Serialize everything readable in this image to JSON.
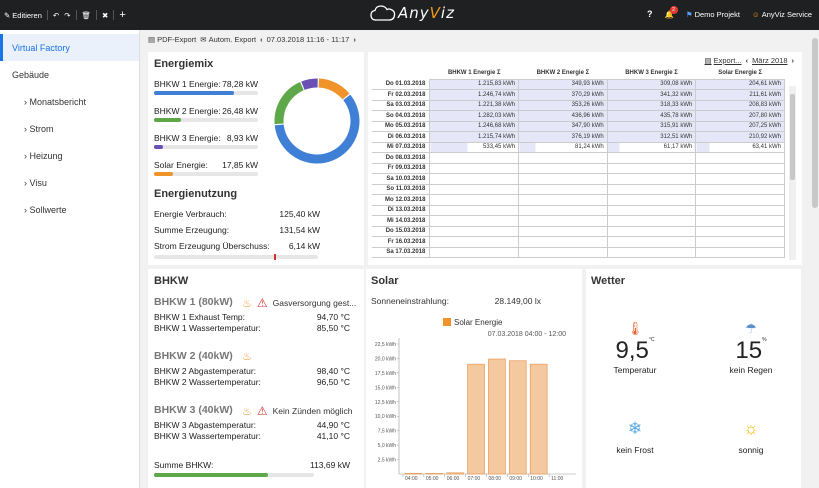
{
  "topbar": {
    "edit_label": "Editieren",
    "app_name_a": "Any",
    "app_name_v": "V",
    "app_name_iz": "iz",
    "notification_count": "2",
    "project_label": "Demo Projekt",
    "user_label": "AnyViz Service",
    "help_label": "?"
  },
  "sidebar": {
    "items": [
      {
        "label": "Virtual Factory"
      },
      {
        "label": "Gebäude"
      },
      {
        "label": "› Monatsbericht"
      },
      {
        "label": "› Strom"
      },
      {
        "label": "› Heizung"
      },
      {
        "label": "› Visu"
      },
      {
        "label": "› Sollwerte"
      }
    ]
  },
  "toolbar": {
    "pdf_export": "PDF-Export",
    "auto_export": "Autom. Export",
    "range": "07.03.2018 11:16 - 11:17"
  },
  "energiemix": {
    "title": "Energiemix",
    "rows": [
      {
        "label": "BHKW 1 Energie:",
        "value": "78,28 kW",
        "color": "#3f7fd6",
        "ratio": 0.77
      },
      {
        "label": "BHKW 2 Energie:",
        "value": "26,48 kW",
        "color": "#5ea84a",
        "ratio": 0.26
      },
      {
        "label": "BHKW 3 Energie:",
        "value": "8,93 kW",
        "color": "#6a4fb4",
        "ratio": 0.09
      },
      {
        "label": "Solar Energie:",
        "value": "17,85 kW",
        "color": "#f0932b",
        "ratio": 0.18
      }
    ],
    "donut": [
      {
        "value": 78.28,
        "color": "#3f7fd6"
      },
      {
        "value": 26.48,
        "color": "#5ea84a"
      },
      {
        "value": 8.93,
        "color": "#6a4fb4"
      },
      {
        "value": 17.85,
        "color": "#f0932b"
      }
    ],
    "nutzung_title": "Energienutzung",
    "verbrauch_label": "Energie Verbrauch:",
    "verbrauch_value": "125,40 kW",
    "erzeugung_label": "Summe Erzeugung:",
    "erzeugung_value": "131,54 kW",
    "ueberschuss_label": "Strom Erzeugung Überschuss:",
    "ueberschuss_value": "6,14 kW",
    "ueberschuss_ratio": 0.73
  },
  "table": {
    "export_label": "Export...",
    "month_label": "März 2018",
    "headers": [
      "BHKW 1 Energie Σ",
      "BHKW 2 Energie Σ",
      "BHKW 3 Energie Σ",
      "Solar Energie Σ"
    ],
    "rows": [
      {
        "date": "Do 01.03.2018",
        "vals": [
          "1.215,83 kWh",
          "349,93 kWh",
          "309,08 kWh",
          "204,61 kWh"
        ]
      },
      {
        "date": "Fr 02.03.2018",
        "vals": [
          "1.246,74 kWh",
          "370,29 kWh",
          "341,32 kWh",
          "211,61 kWh"
        ]
      },
      {
        "date": "Sa 03.03.2018",
        "vals": [
          "1.221,38 kWh",
          "353,26 kWh",
          "318,33 kWh",
          "208,83 kWh"
        ]
      },
      {
        "date": "So 04.03.2018",
        "vals": [
          "1.282,03 kWh",
          "436,96 kWh",
          "435,78 kWh",
          "207,80 kWh"
        ]
      },
      {
        "date": "Mo 05.03.2018",
        "vals": [
          "1.246,68 kWh",
          "347,90 kWh",
          "315,91 kWh",
          "207,25 kWh"
        ]
      },
      {
        "date": "Di 06.03.2018",
        "vals": [
          "1.215,74 kWh",
          "376,19 kWh",
          "312,51 kWh",
          "210,92 kWh"
        ]
      },
      {
        "date": "Mi 07.03.2018",
        "vals": [
          "533,45 kWh",
          "81,24 kWh",
          "61,17 kWh",
          "63,41 kWh"
        ]
      },
      {
        "date": "Do 08.03.2018",
        "vals": [
          "",
          "",
          "",
          ""
        ]
      },
      {
        "date": "Fr 09.03.2018",
        "vals": [
          "",
          "",
          "",
          ""
        ]
      },
      {
        "date": "Sa 10.03.2018",
        "vals": [
          "",
          "",
          "",
          ""
        ]
      },
      {
        "date": "So 11.03.2018",
        "vals": [
          "",
          "",
          "",
          ""
        ]
      },
      {
        "date": "Mo 12.03.2018",
        "vals": [
          "",
          "",
          "",
          ""
        ]
      },
      {
        "date": "Di 13.03.2018",
        "vals": [
          "",
          "",
          "",
          ""
        ]
      },
      {
        "date": "Mi 14.03.2018",
        "vals": [
          "",
          "",
          "",
          ""
        ]
      },
      {
        "date": "Do 15.03.2018",
        "vals": [
          "",
          "",
          "",
          ""
        ]
      },
      {
        "date": "Fr 16.03.2018",
        "vals": [
          "",
          "",
          "",
          ""
        ]
      },
      {
        "date": "Sa 17.03.2018",
        "vals": [
          "",
          "",
          "",
          ""
        ]
      }
    ]
  },
  "bhkw": {
    "title": "BHKW",
    "units": [
      {
        "name": "BHKW 1 (80kW)",
        "alert": "Gasversorgung gest...",
        "lines": [
          [
            "BHKW 1 Exhaust Temp:",
            "94,70 °C"
          ],
          [
            "BHKW 1 Wassertemperatur:",
            "85,50 °C"
          ]
        ]
      },
      {
        "name": "BHKW 2 (40kW)",
        "alert": "",
        "lines": [
          [
            "BHKW 2 Abgastemperatur:",
            "98,40 °C"
          ],
          [
            "BHKW 2 Wassertemperatur:",
            "96,50 °C"
          ]
        ]
      },
      {
        "name": "BHKW 3 (40kW)",
        "alert": "Kein Zünden möglich",
        "lines": [
          [
            "BHKW 3 Abgastemperatur:",
            "44,90 °C"
          ],
          [
            "BHKW 3 Wassertemperatur:",
            "41,10 °C"
          ]
        ]
      }
    ],
    "sum_label": "Summe BHKW:",
    "sum_value": "113,69 kW",
    "sum_ratio": 0.71
  },
  "solar": {
    "title": "Solar",
    "irradiance_label": "Sonneneinstrahlung:",
    "irradiance_value": "28.149,00 lx"
  },
  "weather": {
    "title": "Wetter",
    "temp_value": "9,5",
    "temp_unit": "°C",
    "temp_label": "Temperatur",
    "rain_value": "15",
    "rain_unit": "%",
    "rain_label": "kein Regen",
    "frost_label": "kein Frost",
    "sun_label": "sonnig"
  },
  "chart_data": {
    "type": "bar",
    "title": "07.03.2018 04:00 - 12:00",
    "legend": [
      "Solar Energie"
    ],
    "categories": [
      "04:00",
      "05:00",
      "06:00",
      "07:00",
      "08:00",
      "09:00",
      "10:00",
      "11:00"
    ],
    "values": [
      0.1,
      0.1,
      0.2,
      19.0,
      19.9,
      19.6,
      19.0,
      0
    ],
    "ylim": [
      0,
      22.5
    ],
    "yticks": [
      "2,5 kWh",
      "5,0 kWh",
      "7,5 kWh",
      "10,0 kWh",
      "12,5 kWh",
      "15,0 kWh",
      "17,5 kWh",
      "20,0 kWh",
      "22,5 kWh"
    ],
    "color": "#f5c9a0",
    "edge": "#e8a060"
  }
}
